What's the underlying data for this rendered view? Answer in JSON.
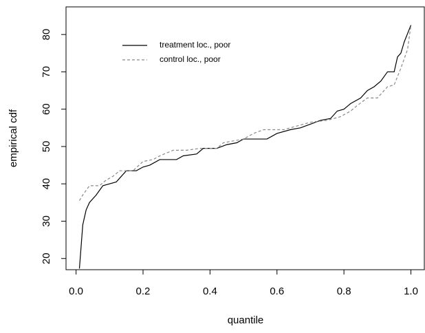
{
  "chart_data": {
    "type": "line",
    "x_label": "quantile",
    "y_label": "empirical cdf",
    "xlim": [
      -0.03,
      1.04
    ],
    "ylim": [
      17,
      87.4
    ],
    "xticks": [
      {
        "value": 0,
        "label": "0.0"
      },
      0.2,
      0.4,
      0.6,
      0.8,
      {
        "value": 1,
        "label": "1.0"
      }
    ],
    "yticks": [
      20,
      30,
      40,
      50,
      60,
      70,
      80
    ],
    "legend": "top-left",
    "series": [
      {
        "name": "treatment loc., poor",
        "color": "#000000",
        "dash": "solid",
        "x": [
          0.01,
          0.02,
          0.03,
          0.04,
          0.06,
          0.08,
          0.1,
          0.12,
          0.13,
          0.15,
          0.18,
          0.2,
          0.22,
          0.25,
          0.3,
          0.32,
          0.36,
          0.38,
          0.42,
          0.45,
          0.48,
          0.5,
          0.57,
          0.6,
          0.64,
          0.67,
          0.7,
          0.73,
          0.76,
          0.78,
          0.8,
          0.82,
          0.85,
          0.87,
          0.89,
          0.91,
          0.93,
          0.95,
          0.96,
          0.97,
          0.98,
          1.0
        ],
        "values": [
          17.3,
          29,
          33,
          35,
          37,
          39.5,
          40,
          40.5,
          41.5,
          43.5,
          43.5,
          44.5,
          45,
          46.5,
          46.5,
          47.5,
          48,
          49.5,
          49.5,
          50.5,
          51,
          52,
          52,
          53.5,
          54.5,
          55,
          56,
          57,
          57.5,
          59.5,
          60,
          61.5,
          63,
          65,
          66,
          67.5,
          70,
          70,
          74,
          75,
          78,
          82.5
        ]
      },
      {
        "name": "control loc., poor",
        "color": "#888888",
        "dash": "dashed",
        "x": [
          0.01,
          0.02,
          0.04,
          0.07,
          0.09,
          0.11,
          0.13,
          0.17,
          0.2,
          0.23,
          0.25,
          0.29,
          0.33,
          0.37,
          0.42,
          0.44,
          0.5,
          0.53,
          0.56,
          0.62,
          0.66,
          0.7,
          0.75,
          0.79,
          0.82,
          0.84,
          0.87,
          0.9,
          0.93,
          0.95,
          0.97,
          0.99,
          1.0
        ],
        "values": [
          35.5,
          37,
          39.5,
          39.5,
          41,
          42,
          43.5,
          43.5,
          46,
          46.5,
          47.5,
          49,
          49,
          49.5,
          49.5,
          51,
          52,
          53.5,
          54.5,
          54.5,
          55.5,
          56.5,
          57,
          58,
          59.5,
          61,
          63,
          63,
          66,
          66.5,
          71,
          76,
          82.5
        ]
      }
    ]
  }
}
